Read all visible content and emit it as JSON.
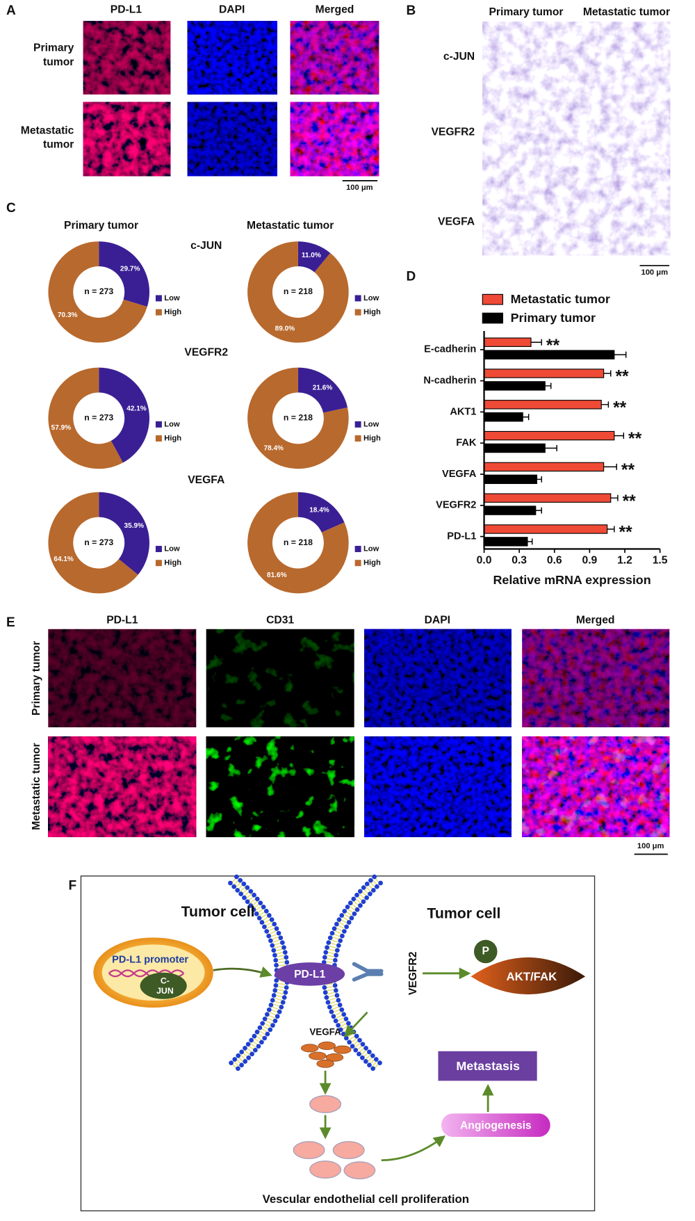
{
  "panel_labels": [
    "A",
    "B",
    "C",
    "D",
    "E",
    "F"
  ],
  "panel_a": {
    "columns": [
      "PD-L1",
      "DAPI",
      "Merged"
    ],
    "rows": [
      [
        "Primary",
        "tumor"
      ],
      [
        "Metastatic",
        "tumor"
      ]
    ],
    "scale_bar": "100 μm"
  },
  "panel_b": {
    "columns": [
      "Primary tumor",
      "Metastatic tumor"
    ],
    "rows": [
      "c-JUN",
      "VEGFR2",
      "VEGFA"
    ],
    "scale_bar": "100 μm"
  },
  "panel_c": {
    "columns": [
      "Primary tumor",
      "Metastatic tumor"
    ],
    "markers": [
      "c-JUN",
      "VEGFR2",
      "VEGFA"
    ]
  },
  "panel_e": {
    "columns": [
      "PD-L1",
      "CD31",
      "DAPI",
      "Merged"
    ],
    "rows": [
      "Primary tumor",
      "Metastatic tumor"
    ],
    "scale_bar": "100 μm"
  },
  "panel_f": {
    "cells": [
      "Tumor cell",
      "Tumor cell"
    ],
    "promoter": "PD-L1 promoter",
    "cjun": [
      "C-",
      "JUN"
    ],
    "pdl1": "PD-L1",
    "receptor": "VEGFR2",
    "phospho": "P",
    "kinase": "AKT/FAK",
    "ligand": "VEGFA",
    "metastasis": "Metastasis",
    "angiogenesis": "Angiogenesis",
    "caption": "Vescular endothelial cell proliferation"
  },
  "chart_data": [
    {
      "type": "pie",
      "categories": [
        "Low",
        "High"
      ],
      "values": [
        29.7,
        70.3
      ],
      "value_labels": [
        "29.7%",
        "70.3%"
      ],
      "colors": [
        "#3a1f94",
        "#b8692d"
      ],
      "center_label": "n = 273"
    },
    {
      "type": "pie",
      "categories": [
        "Low",
        "High"
      ],
      "values": [
        11.0,
        89.0
      ],
      "value_labels": [
        "11.0%",
        "89.0%"
      ],
      "colors": [
        "#3a1f94",
        "#b8692d"
      ],
      "center_label": "n = 218"
    },
    {
      "type": "pie",
      "categories": [
        "Low",
        "High"
      ],
      "values": [
        42.1,
        57.9
      ],
      "value_labels": [
        "42.1%",
        "57.9%"
      ],
      "colors": [
        "#3a1f94",
        "#b8692d"
      ],
      "center_label": "n = 273"
    },
    {
      "type": "pie",
      "categories": [
        "Low",
        "High"
      ],
      "values": [
        21.6,
        78.4
      ],
      "value_labels": [
        "21.6%",
        "78.4%"
      ],
      "colors": [
        "#3a1f94",
        "#b8692d"
      ],
      "center_label": "n = 218"
    },
    {
      "type": "pie",
      "categories": [
        "Low",
        "High"
      ],
      "values": [
        35.9,
        64.1
      ],
      "value_labels": [
        "35.9%",
        "64.1%"
      ],
      "colors": [
        "#3a1f94",
        "#b8692d"
      ],
      "center_label": "n = 273"
    },
    {
      "type": "pie",
      "categories": [
        "Low",
        "High"
      ],
      "values": [
        18.4,
        81.6
      ],
      "value_labels": [
        "18.4%",
        "81.6%"
      ],
      "colors": [
        "#3a1f94",
        "#b8692d"
      ],
      "center_label": "n = 218"
    },
    {
      "type": "hbar",
      "xlabel": "Relative mRNA expression",
      "categories": [
        "E-cadherin",
        "N-cadherin",
        "AKT1",
        "FAK",
        "VEGFA",
        "VEGFR2",
        "PD-L1"
      ],
      "series": [
        {
          "name": "Metastatic tumor",
          "color": "#ef4a36",
          "values": [
            0.4,
            1.02,
            1.0,
            1.11,
            1.02,
            1.08,
            1.05
          ],
          "errors": [
            0.09,
            0.06,
            0.06,
            0.08,
            0.11,
            0.06,
            0.06
          ]
        },
        {
          "name": "Primary tumor",
          "color": "#000000",
          "values": [
            1.11,
            0.52,
            0.33,
            0.52,
            0.45,
            0.44,
            0.37
          ],
          "errors": [
            0.1,
            0.05,
            0.05,
            0.1,
            0.04,
            0.05,
            0.04
          ]
        }
      ],
      "annotations": [
        "**",
        "**",
        "**",
        "**",
        "**",
        "**",
        "**"
      ],
      "xlim": [
        0,
        1.5
      ],
      "xticks": [
        {
          "value": 0,
          "label": "0.0"
        },
        0.3,
        0.6,
        0.9,
        1.2,
        1.5
      ]
    }
  ]
}
